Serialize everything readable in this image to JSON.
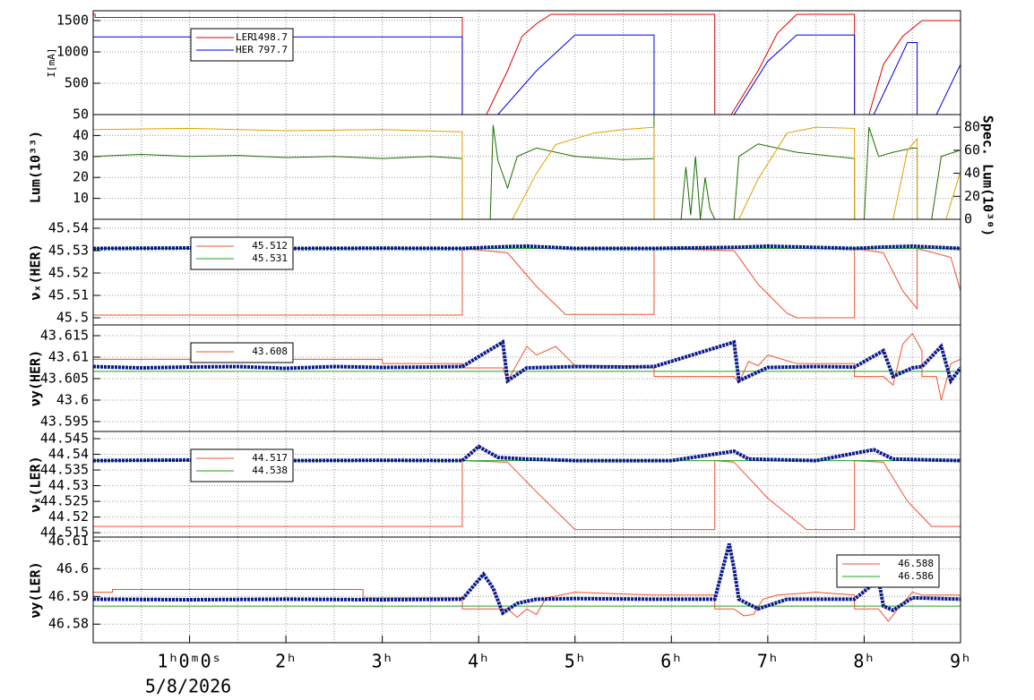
{
  "chart_data": [
    {
      "type": "line",
      "ylabel": "I[mA]",
      "ylim": [
        0,
        1657
      ],
      "yticks": [
        500,
        1000,
        1500
      ],
      "grid": true,
      "legend": "upper left",
      "series": [
        {
          "name": "LER",
          "legend_value": "1498.7",
          "color": "#e00000",
          "x": [
            0,
            0.02,
            0.02,
            3.83,
            3.83,
            4.08,
            4.3,
            4.45,
            4.6,
            4.75,
            6.45,
            6.45,
            6.62,
            6.9,
            7.1,
            7.3,
            7.9,
            7.9,
            8.05,
            8.2,
            8.4,
            8.6,
            9
          ],
          "values": [
            1600,
            1600,
            1550,
            1550,
            0,
            0,
            700,
            1250,
            1450,
            1600,
            1600,
            0,
            0,
            700,
            1300,
            1600,
            1600,
            0,
            0,
            800,
            1250,
            1500,
            1500
          ]
        },
        {
          "name": "HER",
          "legend_value": "797.7",
          "color": "#0000e0",
          "x": [
            0,
            3.83,
            3.83,
            4.2,
            4.6,
            5.0,
            5.82,
            5.82,
            6.65,
            7.0,
            7.3,
            7.9,
            7.9,
            8.1,
            8.45,
            8.55,
            8.55,
            8.75,
            9
          ],
          "values": [
            1240,
            1240,
            0,
            0,
            700,
            1270,
            1270,
            0,
            0,
            850,
            1270,
            1270,
            0,
            0,
            1150,
            1150,
            0,
            0,
            800
          ]
        }
      ]
    },
    {
      "type": "line",
      "ylabel": "Lum(10³³)",
      "y2label": "Spec. Lum(10³⁰)",
      "ylim": [
        0,
        50
      ],
      "yticks": [
        10,
        20,
        30,
        40,
        50
      ],
      "y2lim": [
        0,
        91
      ],
      "y2ticks": [
        0,
        20,
        40,
        60,
        80
      ],
      "grid": true,
      "series": [
        {
          "color": "#1a6e00",
          "x": [
            0,
            0.5,
            1,
            1.5,
            2,
            2.5,
            3,
            3.5,
            3.83,
            3.83,
            4.12,
            4.15,
            4.2,
            4.3,
            4.4,
            4.6,
            5,
            5.5,
            5.82,
            5.82,
            5.82,
            6.1,
            6.15,
            6.2,
            6.25,
            6.3,
            6.35,
            6.4,
            6.45,
            6.65,
            6.7,
            6.9,
            7.3,
            7.9,
            7.9,
            8.0,
            8.05,
            8.15,
            8.3,
            8.5,
            8.55,
            8.55,
            8.7,
            8.8,
            9
          ],
          "values": [
            30,
            31,
            30,
            30.5,
            29.5,
            30,
            29,
            30,
            29,
            0,
            0,
            45,
            28,
            15,
            30,
            34,
            30,
            28.5,
            29,
            50,
            0,
            0,
            25,
            2,
            30,
            0,
            20,
            5,
            0,
            0,
            30,
            36,
            32,
            29,
            0,
            0,
            44,
            30,
            32,
            34,
            34,
            0,
            0,
            30,
            33
          ]
        },
        {
          "color": "#e0a000",
          "axis": "y2",
          "x": [
            0,
            1,
            2,
            3,
            3.83,
            3.83,
            4.35,
            4.6,
            4.8,
            5.2,
            5.5,
            5.82,
            5.82,
            6.7,
            6.9,
            7.2,
            7.5,
            7.9,
            7.9,
            8.3,
            8.45,
            8.55,
            8.55,
            8.85,
            9
          ],
          "values": [
            78,
            79,
            77,
            78,
            76,
            0,
            0,
            40,
            65,
            75,
            78,
            80,
            0,
            0,
            35,
            75,
            80,
            79,
            0,
            0,
            60,
            70,
            0,
            0,
            42
          ]
        }
      ]
    },
    {
      "type": "line",
      "ylabel": "νₓ(HER)",
      "ylim": [
        45.4968,
        45.544
      ],
      "yticks": [
        45.5,
        45.51,
        45.52,
        45.53,
        45.54
      ],
      "grid": true,
      "legend": "upper left",
      "series": [
        {
          "legend_value": "45.512",
          "color": "#f05030",
          "x": [
            0,
            3.83,
            3.83,
            4.3,
            4.6,
            4.9,
            5.82,
            5.82,
            6.65,
            6.9,
            7.2,
            7.3,
            7.9,
            7.9,
            8.2,
            8.4,
            8.55,
            8.55,
            8.9,
            9
          ],
          "values": [
            45.5012,
            45.5012,
            45.531,
            45.529,
            45.514,
            45.5015,
            45.5015,
            45.531,
            45.53,
            45.515,
            45.502,
            45.5,
            45.5,
            45.531,
            45.529,
            45.512,
            45.504,
            45.531,
            45.527,
            45.512
          ]
        },
        {
          "legend_value": "45.531",
          "color": "#20a020",
          "x": [
            0,
            9
          ],
          "values": [
            45.531,
            45.531
          ]
        },
        {
          "color": "#0a1a8c",
          "marker": "dots",
          "x": [
            0,
            1,
            2,
            3,
            3.83,
            4.3,
            4.5,
            5,
            5.8,
            6.7,
            7.0,
            7.9,
            8.2,
            8.5,
            9
          ],
          "values": [
            45.531,
            45.5312,
            45.531,
            45.5311,
            45.531,
            45.5318,
            45.532,
            45.531,
            45.531,
            45.5315,
            45.532,
            45.531,
            45.5316,
            45.532,
            45.531
          ]
        }
      ]
    },
    {
      "type": "line",
      "ylabel": "νy(HER)",
      "ylim": [
        43.5927,
        43.6175
      ],
      "yticks": [
        43.595,
        43.6,
        43.605,
        43.61,
        43.615
      ],
      "grid": true,
      "legend": "upper left",
      "series": [
        {
          "legend_value": "43.608",
          "color": "#f05030",
          "x": [
            0,
            3,
            3,
            3.83,
            3.83,
            4.25,
            4.3,
            4.4,
            4.5,
            4.6,
            4.8,
            5,
            5.5,
            5.82,
            5.82,
            6.65,
            6.7,
            6.8,
            6.9,
            7.0,
            7.3,
            7.9,
            7.9,
            8.2,
            8.3,
            8.4,
            8.5,
            8.6,
            8.6,
            8.75,
            8.8,
            8.9,
            9
          ],
          "values": [
            43.6095,
            43.6095,
            43.6085,
            43.6085,
            43.6075,
            43.6075,
            43.6045,
            43.6085,
            43.6125,
            43.6105,
            43.6125,
            43.608,
            43.608,
            43.6075,
            43.6055,
            43.6055,
            43.604,
            43.609,
            43.608,
            43.6105,
            43.6085,
            43.6085,
            43.6055,
            43.6055,
            43.6035,
            43.613,
            43.6155,
            43.6115,
            43.6055,
            43.6055,
            43.6,
            43.6085,
            43.6095
          ]
        },
        {
          "color": "#20a020",
          "x": [
            0,
            9
          ],
          "values": [
            43.6067,
            43.6067
          ]
        },
        {
          "color": "#0a1a8c",
          "marker": "dots",
          "x": [
            0,
            0.5,
            1,
            1.5,
            2,
            2.5,
            3,
            3.5,
            3.83,
            4.25,
            4.3,
            4.5,
            5,
            5.5,
            5.82,
            6.65,
            6.7,
            7.0,
            7.5,
            7.9,
            8.2,
            8.3,
            8.5,
            8.6,
            8.8,
            8.9,
            9
          ],
          "values": [
            43.6078,
            43.6075,
            43.6077,
            43.6078,
            43.6074,
            43.6078,
            43.6076,
            43.6077,
            43.6078,
            43.6135,
            43.6045,
            43.6075,
            43.6078,
            43.6077,
            43.6078,
            43.6135,
            43.6045,
            43.6076,
            43.6078,
            43.6077,
            43.6115,
            43.6055,
            43.6075,
            43.6078,
            43.6125,
            43.6045,
            43.6075
          ]
        }
      ]
    },
    {
      "type": "line",
      "ylabel": "νₓ(LER)",
      "ylim": [
        44.5136,
        44.5473
      ],
      "yticks": [
        44.515,
        44.52,
        44.525,
        44.53,
        44.535,
        44.54,
        44.545
      ],
      "grid": true,
      "legend": "upper left",
      "series": [
        {
          "legend_value": "44.517",
          "color": "#f05030",
          "x": [
            0,
            3.83,
            3.83,
            4.3,
            4.6,
            5.0,
            6.45,
            6.45,
            6.65,
            7.0,
            7.4,
            7.9,
            7.9,
            8.2,
            8.45,
            8.7,
            9
          ],
          "values": [
            44.517,
            44.517,
            44.538,
            44.5375,
            44.528,
            44.516,
            44.516,
            44.538,
            44.5375,
            44.526,
            44.516,
            44.516,
            44.538,
            44.5375,
            44.525,
            44.517,
            44.517
          ]
        },
        {
          "legend_value": "44.538",
          "color": "#20a020",
          "x": [
            0,
            9
          ],
          "values": [
            44.538,
            44.538
          ]
        },
        {
          "color": "#0a1a8c",
          "marker": "dots",
          "x": [
            0,
            1,
            2,
            3,
            3.83,
            4.0,
            4.2,
            4.5,
            5,
            6,
            6.65,
            6.8,
            7.5,
            8.1,
            8.3,
            9
          ],
          "values": [
            44.538,
            44.5382,
            44.538,
            44.5381,
            44.538,
            44.5425,
            44.539,
            44.5385,
            44.538,
            44.538,
            44.541,
            44.5385,
            44.538,
            44.5415,
            44.5385,
            44.538
          ]
        }
      ]
    },
    {
      "type": "line",
      "ylabel": "νy(LER)",
      "ylim": [
        46.5733,
        46.6114
      ],
      "yticks": [
        46.58,
        46.59,
        46.6,
        46.61
      ],
      "grid": true,
      "legend": "upper right",
      "xlim": [
        0,
        9
      ],
      "xticks": [
        {
          "value": 1,
          "label": "1ʰ0ᵐ0ˢ"
        },
        {
          "value": 2,
          "label": "2ʰ"
        },
        {
          "value": 3,
          "label": "3ʰ"
        },
        {
          "value": 4,
          "label": "4ʰ"
        },
        {
          "value": 5,
          "label": "5ʰ"
        },
        {
          "value": 6,
          "label": "6ʰ"
        },
        {
          "value": 7,
          "label": "7ʰ"
        },
        {
          "value": 8,
          "label": "8ʰ"
        },
        {
          "value": 9,
          "label": "9ʰ"
        }
      ],
      "xminorticks": [
        0.5,
        1.5,
        2.5,
        3.5,
        4.5,
        5.5,
        6.5,
        7.5,
        8.5
      ],
      "date_label": "5/8/2026",
      "series": [
        {
          "legend_value": "46.588",
          "color": "#f05030",
          "x": [
            0,
            0.2,
            0.2,
            2.8,
            2.8,
            3.83,
            3.83,
            4.3,
            4.4,
            4.5,
            4.6,
            4.7,
            5.0,
            5.8,
            6.45,
            6.45,
            6.65,
            6.75,
            6.85,
            6.95,
            7.1,
            7.5,
            7.9,
            7.9,
            8.15,
            8.25,
            8.35,
            8.5,
            8.6,
            9
          ],
          "values": [
            46.5915,
            46.5915,
            46.5925,
            46.5925,
            46.5895,
            46.5895,
            46.5855,
            46.5855,
            46.5825,
            46.5855,
            46.5835,
            46.5895,
            46.5915,
            46.5905,
            46.5905,
            46.5855,
            46.5855,
            46.583,
            46.5835,
            46.589,
            46.5905,
            46.5915,
            46.5905,
            46.5855,
            46.5855,
            46.581,
            46.5855,
            46.5915,
            46.5905,
            46.5905
          ]
        },
        {
          "legend_value": "46.586",
          "color": "#20a020",
          "x": [
            0,
            9
          ],
          "values": [
            46.5865,
            46.5865
          ]
        },
        {
          "color": "#0a1a8c",
          "marker": "dots",
          "x": [
            0,
            1,
            2,
            3,
            3.83,
            4.05,
            4.15,
            4.25,
            4.4,
            4.6,
            5,
            5.8,
            6.45,
            6.6,
            6.65,
            6.7,
            6.9,
            7.2,
            7.9,
            8.15,
            8.2,
            8.3,
            8.5,
            9
          ],
          "values": [
            46.589,
            46.5888,
            46.589,
            46.5888,
            46.589,
            46.598,
            46.593,
            46.584,
            46.5875,
            46.589,
            46.5892,
            46.589,
            46.589,
            46.609,
            46.6,
            46.589,
            46.5855,
            46.589,
            46.589,
            46.596,
            46.5865,
            46.585,
            46.5895,
            46.589
          ]
        }
      ]
    }
  ]
}
